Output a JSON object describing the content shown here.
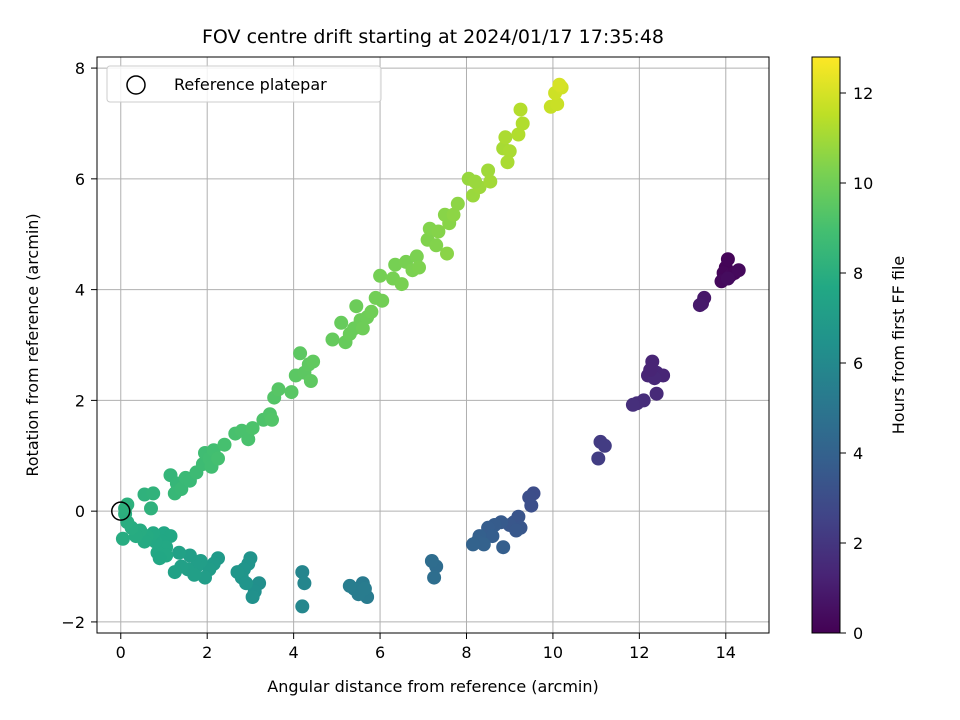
{
  "chart_data": {
    "type": "scatter",
    "title": "FOV centre drift starting at 2024/01/17 17:35:48",
    "xlabel": "Angular distance from reference (arcmin)",
    "ylabel": "Rotation from reference (arcmin)",
    "xlim": [
      -0.55,
      15.0
    ],
    "ylim": [
      -2.2,
      8.2
    ],
    "xticks": [
      0,
      2,
      4,
      6,
      8,
      10,
      12,
      14
    ],
    "yticks": [
      -2,
      0,
      2,
      4,
      6,
      8
    ],
    "grid": true,
    "legend": {
      "position": "upper-left",
      "entries": [
        "Reference platepar"
      ]
    },
    "reference_point": {
      "x": 0,
      "y": 0
    },
    "colorbar": {
      "label": "Hours from first FF file",
      "colormap": "viridis",
      "range": [
        0,
        12.8
      ],
      "ticks": [
        0,
        2,
        4,
        6,
        8,
        10,
        12
      ]
    },
    "points": [
      {
        "x": 14.0,
        "y": 4.4,
        "h": 0.1
      },
      {
        "x": 14.05,
        "y": 4.55,
        "h": 0.15
      },
      {
        "x": 13.95,
        "y": 4.3,
        "h": 0.2
      },
      {
        "x": 14.1,
        "y": 4.25,
        "h": 0.25
      },
      {
        "x": 13.9,
        "y": 4.15,
        "h": 0.3
      },
      {
        "x": 14.2,
        "y": 4.3,
        "h": 0.2
      },
      {
        "x": 14.3,
        "y": 4.35,
        "h": 0.3
      },
      {
        "x": 14.05,
        "y": 4.2,
        "h": 0.4
      },
      {
        "x": 13.5,
        "y": 3.85,
        "h": 0.8
      },
      {
        "x": 13.45,
        "y": 3.75,
        "h": 0.85
      },
      {
        "x": 13.4,
        "y": 3.72,
        "h": 0.9
      },
      {
        "x": 12.3,
        "y": 2.7,
        "h": 1.3
      },
      {
        "x": 12.2,
        "y": 2.45,
        "h": 1.35
      },
      {
        "x": 12.4,
        "y": 2.5,
        "h": 1.4
      },
      {
        "x": 12.55,
        "y": 2.45,
        "h": 1.35
      },
      {
        "x": 12.35,
        "y": 2.4,
        "h": 1.45
      },
      {
        "x": 12.25,
        "y": 2.55,
        "h": 1.3
      },
      {
        "x": 12.4,
        "y": 2.12,
        "h": 1.5
      },
      {
        "x": 12.1,
        "y": 2.0,
        "h": 1.6
      },
      {
        "x": 11.95,
        "y": 1.95,
        "h": 1.65
      },
      {
        "x": 11.85,
        "y": 1.92,
        "h": 1.7
      },
      {
        "x": 11.1,
        "y": 1.25,
        "h": 2.2
      },
      {
        "x": 11.2,
        "y": 1.18,
        "h": 2.25
      },
      {
        "x": 11.05,
        "y": 0.95,
        "h": 2.3
      },
      {
        "x": 9.55,
        "y": 0.32,
        "h": 3.0
      },
      {
        "x": 9.45,
        "y": 0.25,
        "h": 3.05
      },
      {
        "x": 9.5,
        "y": 0.1,
        "h": 3.1
      },
      {
        "x": 9.2,
        "y": -0.1,
        "h": 3.3
      },
      {
        "x": 9.1,
        "y": -0.2,
        "h": 3.35
      },
      {
        "x": 9.25,
        "y": -0.3,
        "h": 3.4
      },
      {
        "x": 9.0,
        "y": -0.25,
        "h": 3.45
      },
      {
        "x": 9.15,
        "y": -0.35,
        "h": 3.5
      },
      {
        "x": 8.8,
        "y": -0.2,
        "h": 3.6
      },
      {
        "x": 8.65,
        "y": -0.25,
        "h": 3.7
      },
      {
        "x": 8.5,
        "y": -0.3,
        "h": 3.75
      },
      {
        "x": 8.6,
        "y": -0.45,
        "h": 3.8
      },
      {
        "x": 8.3,
        "y": -0.45,
        "h": 3.9
      },
      {
        "x": 8.25,
        "y": -0.55,
        "h": 3.95
      },
      {
        "x": 8.4,
        "y": -0.6,
        "h": 4.0
      },
      {
        "x": 8.85,
        "y": -0.65,
        "h": 3.85
      },
      {
        "x": 8.15,
        "y": -0.6,
        "h": 4.05
      },
      {
        "x": 7.3,
        "y": -1.0,
        "h": 4.5
      },
      {
        "x": 7.2,
        "y": -0.9,
        "h": 4.55
      },
      {
        "x": 7.25,
        "y": -1.2,
        "h": 4.6
      },
      {
        "x": 5.6,
        "y": -1.3,
        "h": 5.2
      },
      {
        "x": 5.7,
        "y": -1.55,
        "h": 5.25
      },
      {
        "x": 5.5,
        "y": -1.5,
        "h": 5.3
      },
      {
        "x": 5.4,
        "y": -1.4,
        "h": 5.35
      },
      {
        "x": 5.3,
        "y": -1.35,
        "h": 5.4
      },
      {
        "x": 5.65,
        "y": -1.4,
        "h": 5.3
      },
      {
        "x": 4.2,
        "y": -1.1,
        "h": 5.8
      },
      {
        "x": 4.25,
        "y": -1.3,
        "h": 5.85
      },
      {
        "x": 4.2,
        "y": -1.72,
        "h": 5.9
      },
      {
        "x": 3.2,
        "y": -1.3,
        "h": 6.3
      },
      {
        "x": 3.1,
        "y": -1.45,
        "h": 6.35
      },
      {
        "x": 3.05,
        "y": -1.55,
        "h": 6.4
      },
      {
        "x": 3.0,
        "y": -0.85,
        "h": 6.5
      },
      {
        "x": 2.95,
        "y": -0.95,
        "h": 6.55
      },
      {
        "x": 2.85,
        "y": -1.05,
        "h": 6.6
      },
      {
        "x": 2.8,
        "y": -1.2,
        "h": 6.65
      },
      {
        "x": 2.7,
        "y": -1.1,
        "h": 6.7
      },
      {
        "x": 2.9,
        "y": -1.3,
        "h": 6.6
      },
      {
        "x": 2.25,
        "y": -0.85,
        "h": 6.9
      },
      {
        "x": 2.15,
        "y": -0.95,
        "h": 6.95
      },
      {
        "x": 2.05,
        "y": -1.05,
        "h": 7.0
      },
      {
        "x": 1.95,
        "y": -1.2,
        "h": 7.05
      },
      {
        "x": 1.85,
        "y": -0.9,
        "h": 7.1
      },
      {
        "x": 1.75,
        "y": -1.0,
        "h": 7.1
      },
      {
        "x": 1.6,
        "y": -0.8,
        "h": 7.15
      },
      {
        "x": 1.55,
        "y": -1.05,
        "h": 7.2
      },
      {
        "x": 1.4,
        "y": -1.0,
        "h": 7.25
      },
      {
        "x": 1.35,
        "y": -0.75,
        "h": 7.3
      },
      {
        "x": 1.25,
        "y": -1.1,
        "h": 7.3
      },
      {
        "x": 1.7,
        "y": -1.15,
        "h": 7.2
      },
      {
        "x": 1.0,
        "y": -0.4,
        "h": 7.6
      },
      {
        "x": 1.15,
        "y": -0.45,
        "h": 7.65
      },
      {
        "x": 0.95,
        "y": -0.55,
        "h": 7.65
      },
      {
        "x": 1.05,
        "y": -0.65,
        "h": 7.7
      },
      {
        "x": 0.85,
        "y": -0.75,
        "h": 7.7
      },
      {
        "x": 0.8,
        "y": -0.55,
        "h": 7.7
      },
      {
        "x": 0.75,
        "y": -0.4,
        "h": 7.75
      },
      {
        "x": 1.05,
        "y": -0.8,
        "h": 7.7
      },
      {
        "x": 0.9,
        "y": -0.85,
        "h": 7.65
      },
      {
        "x": 0.6,
        "y": -0.45,
        "h": 7.8
      },
      {
        "x": 0.55,
        "y": -0.55,
        "h": 7.8
      },
      {
        "x": 0.45,
        "y": -0.35,
        "h": 7.85
      },
      {
        "x": 0.35,
        "y": -0.45,
        "h": 7.85
      },
      {
        "x": 0.25,
        "y": -0.3,
        "h": 7.9
      },
      {
        "x": 0.15,
        "y": -0.2,
        "h": 7.95
      },
      {
        "x": 0.1,
        "y": -0.05,
        "h": 8.0
      },
      {
        "x": 0.05,
        "y": -0.5,
        "h": 7.9
      },
      {
        "x": 0.1,
        "y": 0.05,
        "h": 8.05
      },
      {
        "x": 0.15,
        "y": 0.12,
        "h": 8.1
      },
      {
        "x": 0.55,
        "y": 0.3,
        "h": 8.2
      },
      {
        "x": 0.75,
        "y": 0.32,
        "h": 8.25
      },
      {
        "x": 0.7,
        "y": 0.05,
        "h": 8.2
      },
      {
        "x": 1.15,
        "y": 0.65,
        "h": 8.4
      },
      {
        "x": 1.3,
        "y": 0.5,
        "h": 8.45
      },
      {
        "x": 1.25,
        "y": 0.32,
        "h": 8.5
      },
      {
        "x": 1.4,
        "y": 0.4,
        "h": 8.55
      },
      {
        "x": 1.5,
        "y": 0.6,
        "h": 8.6
      },
      {
        "x": 1.6,
        "y": 0.55,
        "h": 8.6
      },
      {
        "x": 1.75,
        "y": 0.7,
        "h": 8.7
      },
      {
        "x": 1.9,
        "y": 0.85,
        "h": 8.75
      },
      {
        "x": 1.95,
        "y": 1.05,
        "h": 8.8
      },
      {
        "x": 2.05,
        "y": 0.95,
        "h": 8.85
      },
      {
        "x": 2.15,
        "y": 1.1,
        "h": 8.9
      },
      {
        "x": 2.1,
        "y": 0.8,
        "h": 8.85
      },
      {
        "x": 2.25,
        "y": 0.95,
        "h": 8.95
      },
      {
        "x": 2.4,
        "y": 1.2,
        "h": 9.0
      },
      {
        "x": 2.65,
        "y": 1.4,
        "h": 9.05
      },
      {
        "x": 2.8,
        "y": 1.45,
        "h": 9.1
      },
      {
        "x": 2.95,
        "y": 1.3,
        "h": 9.1
      },
      {
        "x": 3.05,
        "y": 1.5,
        "h": 9.15
      },
      {
        "x": 3.3,
        "y": 1.65,
        "h": 9.2
      },
      {
        "x": 3.45,
        "y": 1.75,
        "h": 9.25
      },
      {
        "x": 3.5,
        "y": 1.65,
        "h": 9.3
      },
      {
        "x": 3.55,
        "y": 2.05,
        "h": 9.35
      },
      {
        "x": 3.65,
        "y": 2.2,
        "h": 9.4
      },
      {
        "x": 3.95,
        "y": 2.15,
        "h": 9.45
      },
      {
        "x": 4.05,
        "y": 2.45,
        "h": 9.5
      },
      {
        "x": 4.15,
        "y": 2.85,
        "h": 9.55
      },
      {
        "x": 4.25,
        "y": 2.5,
        "h": 9.55
      },
      {
        "x": 4.35,
        "y": 2.65,
        "h": 9.6
      },
      {
        "x": 4.4,
        "y": 2.35,
        "h": 9.6
      },
      {
        "x": 4.45,
        "y": 2.7,
        "h": 9.65
      },
      {
        "x": 4.9,
        "y": 3.1,
        "h": 9.75
      },
      {
        "x": 5.1,
        "y": 3.4,
        "h": 9.8
      },
      {
        "x": 5.2,
        "y": 3.05,
        "h": 9.8
      },
      {
        "x": 5.3,
        "y": 3.2,
        "h": 9.85
      },
      {
        "x": 5.4,
        "y": 3.3,
        "h": 9.85
      },
      {
        "x": 5.45,
        "y": 3.7,
        "h": 9.9
      },
      {
        "x": 5.55,
        "y": 3.45,
        "h": 9.9
      },
      {
        "x": 5.6,
        "y": 3.3,
        "h": 9.95
      },
      {
        "x": 5.7,
        "y": 3.5,
        "h": 9.95
      },
      {
        "x": 5.8,
        "y": 3.6,
        "h": 10.0
      },
      {
        "x": 5.9,
        "y": 3.85,
        "h": 10.05
      },
      {
        "x": 6.05,
        "y": 3.8,
        "h": 10.05
      },
      {
        "x": 6.0,
        "y": 4.25,
        "h": 10.1
      },
      {
        "x": 6.3,
        "y": 4.2,
        "h": 10.15
      },
      {
        "x": 6.35,
        "y": 4.45,
        "h": 10.15
      },
      {
        "x": 6.5,
        "y": 4.1,
        "h": 10.2
      },
      {
        "x": 6.6,
        "y": 4.5,
        "h": 10.2
      },
      {
        "x": 6.75,
        "y": 4.35,
        "h": 10.25
      },
      {
        "x": 6.85,
        "y": 4.6,
        "h": 10.25
      },
      {
        "x": 6.9,
        "y": 4.4,
        "h": 10.3
      },
      {
        "x": 7.1,
        "y": 4.9,
        "h": 10.35
      },
      {
        "x": 7.15,
        "y": 5.1,
        "h": 10.4
      },
      {
        "x": 7.3,
        "y": 4.8,
        "h": 10.4
      },
      {
        "x": 7.35,
        "y": 5.05,
        "h": 10.45
      },
      {
        "x": 7.5,
        "y": 5.35,
        "h": 10.5
      },
      {
        "x": 7.6,
        "y": 5.2,
        "h": 10.5
      },
      {
        "x": 7.55,
        "y": 4.65,
        "h": 10.55
      },
      {
        "x": 7.7,
        "y": 5.35,
        "h": 10.6
      },
      {
        "x": 7.8,
        "y": 5.55,
        "h": 10.6
      },
      {
        "x": 8.05,
        "y": 6.0,
        "h": 10.8
      },
      {
        "x": 8.15,
        "y": 5.7,
        "h": 10.85
      },
      {
        "x": 8.3,
        "y": 5.85,
        "h": 10.9
      },
      {
        "x": 8.2,
        "y": 5.95,
        "h": 10.85
      },
      {
        "x": 8.5,
        "y": 6.15,
        "h": 10.95
      },
      {
        "x": 8.55,
        "y": 5.95,
        "h": 11.0
      },
      {
        "x": 8.85,
        "y": 6.55,
        "h": 11.1
      },
      {
        "x": 8.95,
        "y": 6.3,
        "h": 11.15
      },
      {
        "x": 9.0,
        "y": 6.5,
        "h": 11.15
      },
      {
        "x": 8.9,
        "y": 6.75,
        "h": 11.2
      },
      {
        "x": 9.2,
        "y": 6.8,
        "h": 11.3
      },
      {
        "x": 9.3,
        "y": 7.0,
        "h": 11.3
      },
      {
        "x": 9.25,
        "y": 7.25,
        "h": 11.35
      },
      {
        "x": 9.95,
        "y": 7.3,
        "h": 11.7
      },
      {
        "x": 10.1,
        "y": 7.35,
        "h": 11.75
      },
      {
        "x": 10.05,
        "y": 7.55,
        "h": 11.85
      },
      {
        "x": 10.2,
        "y": 7.65,
        "h": 11.9
      },
      {
        "x": 10.15,
        "y": 7.7,
        "h": 12.0
      }
    ]
  }
}
